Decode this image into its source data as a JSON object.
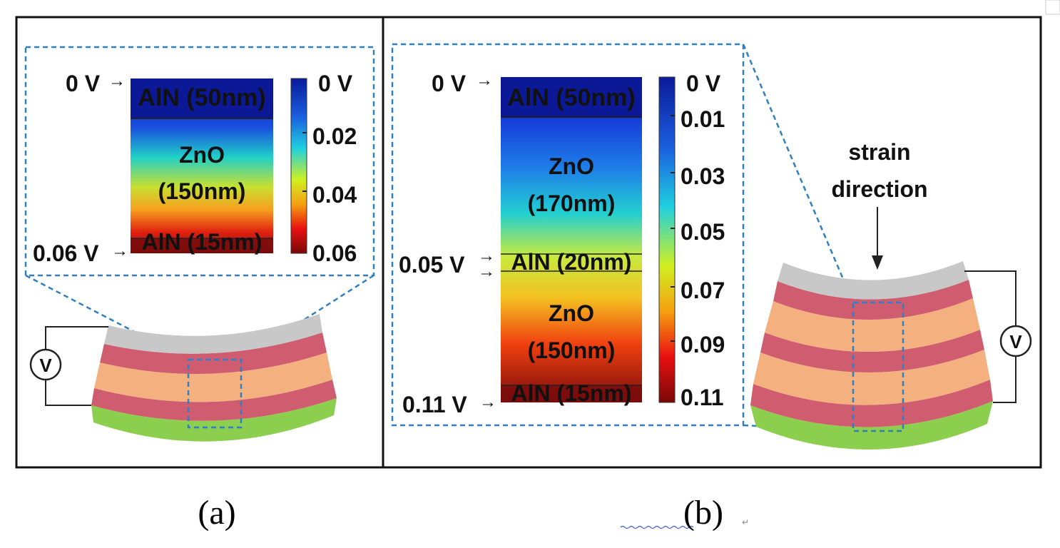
{
  "panel_a": {
    "caption": "(a)",
    "layers": [
      "AlN (50nm)",
      "ZnO",
      "(150nm)",
      "AlN (15nm)"
    ],
    "voltage_labels": [
      "0 V",
      "0.06 V"
    ],
    "colorbar_ticks": [
      "0 V",
      "0.02",
      "0.04",
      "0.06"
    ],
    "meter_label": "V"
  },
  "panel_b": {
    "caption": "(b)",
    "layers": [
      "AlN (50nm)",
      "ZnO",
      "(170nm)",
      "AlN (20nm)",
      "ZnO",
      "(150nm)",
      "AlN (15nm)"
    ],
    "voltage_labels": [
      "0 V",
      "0.05 V",
      "0.11 V"
    ],
    "colorbar_ticks": [
      "0 V",
      "0.01",
      "0.03",
      "0.05",
      "0.07",
      "0.09",
      "0.11"
    ],
    "strain_label": [
      "strain",
      "direction"
    ],
    "meter_label": "V"
  },
  "colors": {
    "callout_dash": "#2f7fc1",
    "top_electrode": "#c8c8c8",
    "aln_layer": "#cf5d6f",
    "zno_layer": "#f5b07f",
    "substrate": "#8ccf4f",
    "aln_20nm_text": "#e020e0"
  }
}
